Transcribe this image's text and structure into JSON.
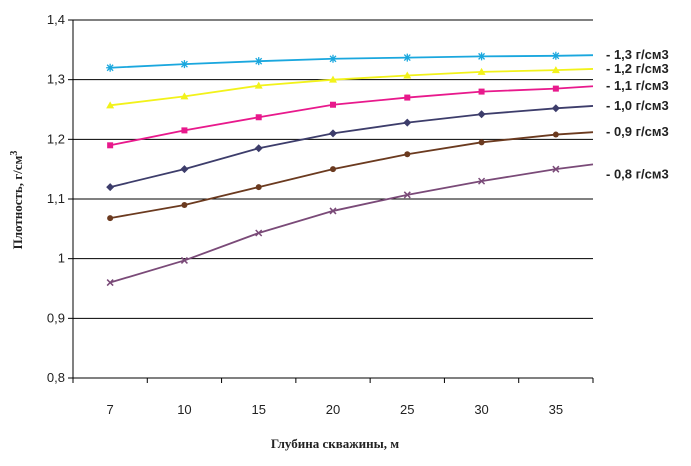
{
  "chart_data": {
    "type": "line",
    "xlabel": "Глубина скважины, м",
    "ylabel": "Плотность, г/см",
    "ylabel_sup": "3",
    "categories": [
      "7",
      "10",
      "15",
      "20",
      "25",
      "30",
      "35"
    ],
    "y_ticks": [
      "0,8",
      "0,9",
      "1",
      "1,1",
      "1,2",
      "1,3",
      "1,4"
    ],
    "ylim": [
      0.8,
      1.4
    ],
    "grid": "horizontal",
    "legend": "right",
    "series": [
      {
        "name": "- 1,3 г/см3",
        "color": "#1aa7de",
        "marker": "star",
        "values": [
          1.32,
          1.326,
          1.331,
          1.335,
          1.337,
          1.339,
          1.34
        ],
        "end_value": 1.341
      },
      {
        "name": "- 1,2 г/см3",
        "color": "#f2f21a",
        "marker": "triangle",
        "values": [
          1.257,
          1.272,
          1.29,
          1.3,
          1.307,
          1.313,
          1.316
        ],
        "end_value": 1.318
      },
      {
        "name": "- 1,1 г/см3",
        "color": "#e8198c",
        "marker": "square",
        "values": [
          1.19,
          1.215,
          1.237,
          1.258,
          1.27,
          1.28,
          1.285
        ],
        "end_value": 1.289
      },
      {
        "name": "- 1,0 г/см3",
        "color": "#3d3d6b",
        "marker": "diamond",
        "values": [
          1.12,
          1.15,
          1.185,
          1.21,
          1.228,
          1.242,
          1.252
        ],
        "end_value": 1.256
      },
      {
        "name": "- 0,9 г/см3",
        "color": "#6b3a1f",
        "marker": "circle",
        "values": [
          1.068,
          1.09,
          1.12,
          1.15,
          1.175,
          1.195,
          1.208
        ],
        "end_value": 1.212
      },
      {
        "name": "- 0,8 г/см3",
        "color": "#7a4a78",
        "marker": "cross",
        "values": [
          0.96,
          0.997,
          1.043,
          1.08,
          1.107,
          1.13,
          1.15
        ],
        "end_value": 1.158
      }
    ]
  }
}
